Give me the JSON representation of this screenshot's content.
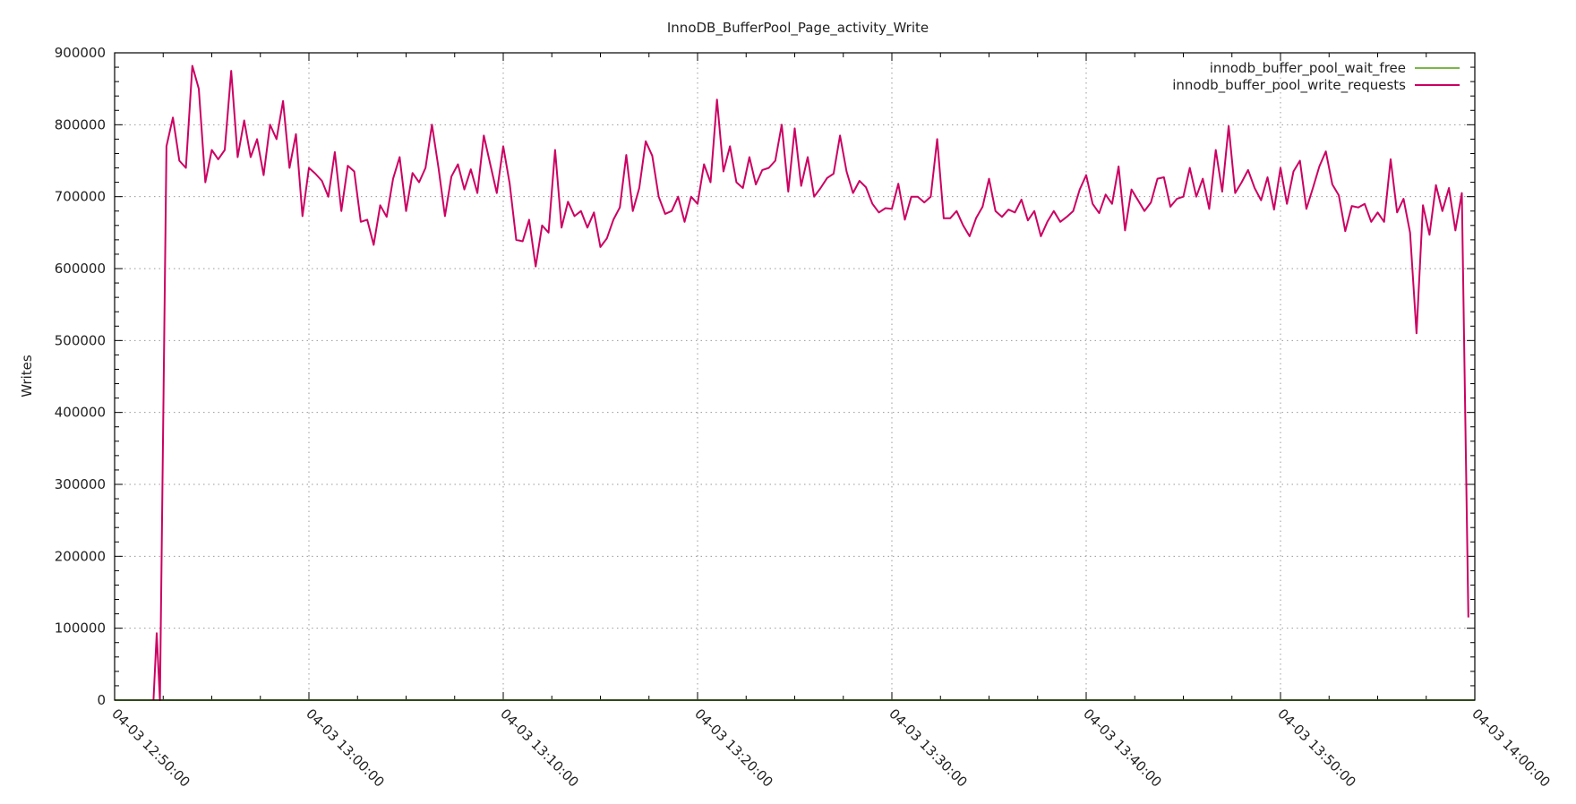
{
  "chart_data": {
    "type": "line",
    "title": "InnoDB_BufferPool_Page_activity_Write",
    "xlabel": "",
    "ylabel": "Writes",
    "xlim": [
      "04-03 12:50:00",
      "04-03 14:00:00"
    ],
    "ylim": [
      0,
      900000
    ],
    "x_ticks": [
      "04-03 12:50:00",
      "04-03 13:00:00",
      "04-03 13:10:00",
      "04-03 13:20:00",
      "04-03 13:30:00",
      "04-03 13:40:00",
      "04-03 13:50:00",
      "04-03 14:00:00"
    ],
    "y_ticks": [
      "0",
      "100000",
      "200000",
      "300000",
      "400000",
      "500000",
      "600000",
      "700000",
      "800000",
      "900000"
    ],
    "grid": true,
    "legend_position": "top-right",
    "series": [
      {
        "name": "innodb_buffer_pool_wait_free",
        "color": "#7ab648",
        "x": [
          "12:50:00",
          "14:00:00"
        ],
        "y": [
          0,
          0
        ]
      },
      {
        "name": "innodb_buffer_pool_write_requests",
        "color": "#cc0062",
        "x": [
          "12:52:00",
          "12:52:10",
          "12:52:20",
          "12:52:40",
          "12:53:00",
          "12:53:20",
          "12:53:40",
          "12:54:00",
          "12:54:20",
          "12:54:40",
          "12:55:00",
          "12:55:20",
          "12:55:40",
          "12:56:00",
          "12:56:20",
          "12:56:40",
          "12:57:00",
          "12:57:20",
          "12:57:40",
          "12:58:00",
          "12:58:20",
          "12:58:40",
          "12:59:00",
          "12:59:20",
          "12:59:40",
          "13:00:00",
          "13:00:20",
          "13:00:40",
          "13:01:00",
          "13:01:20",
          "13:01:40",
          "13:02:00",
          "13:02:20",
          "13:02:40",
          "13:03:00",
          "13:03:20",
          "13:03:40",
          "13:04:00",
          "13:04:20",
          "13:04:40",
          "13:05:00",
          "13:05:20",
          "13:05:40",
          "13:06:00",
          "13:06:20",
          "13:06:40",
          "13:07:00",
          "13:07:20",
          "13:07:40",
          "13:08:00",
          "13:08:20",
          "13:08:40",
          "13:09:00",
          "13:09:20",
          "13:09:40",
          "13:10:00",
          "13:10:20",
          "13:10:40",
          "13:11:00",
          "13:11:20",
          "13:11:40",
          "13:12:00",
          "13:12:20",
          "13:12:40",
          "13:13:00",
          "13:13:20",
          "13:13:40",
          "13:14:00",
          "13:14:20",
          "13:14:40",
          "13:15:00",
          "13:15:20",
          "13:15:40",
          "13:16:00",
          "13:16:20",
          "13:16:40",
          "13:17:00",
          "13:17:20",
          "13:17:40",
          "13:18:00",
          "13:18:20",
          "13:18:40",
          "13:19:00",
          "13:19:20",
          "13:19:40",
          "13:20:00",
          "13:20:20",
          "13:20:40",
          "13:21:00",
          "13:21:20",
          "13:21:40",
          "13:22:00",
          "13:22:20",
          "13:22:40",
          "13:23:00",
          "13:23:20",
          "13:23:40",
          "13:24:00",
          "13:24:20",
          "13:24:40",
          "13:25:00",
          "13:25:20",
          "13:25:40",
          "13:26:00",
          "13:26:20",
          "13:26:40",
          "13:27:00",
          "13:27:20",
          "13:27:40",
          "13:28:00",
          "13:28:20",
          "13:28:40",
          "13:29:00",
          "13:29:20",
          "13:29:40",
          "13:30:00",
          "13:30:20",
          "13:30:40",
          "13:31:00",
          "13:31:20",
          "13:31:40",
          "13:32:00",
          "13:32:20",
          "13:32:40",
          "13:33:00",
          "13:33:20",
          "13:33:40",
          "13:34:00",
          "13:34:20",
          "13:34:40",
          "13:35:00",
          "13:35:20",
          "13:35:40",
          "13:36:00",
          "13:36:20",
          "13:36:40",
          "13:37:00",
          "13:37:20",
          "13:37:40",
          "13:38:00",
          "13:38:20",
          "13:38:40",
          "13:39:00",
          "13:39:20",
          "13:39:40",
          "13:40:00",
          "13:40:20",
          "13:40:40",
          "13:41:00",
          "13:41:20",
          "13:41:40",
          "13:42:00",
          "13:42:20",
          "13:42:40",
          "13:43:00",
          "13:43:20",
          "13:43:40",
          "13:44:00",
          "13:44:20",
          "13:44:40",
          "13:45:00",
          "13:45:20",
          "13:45:40",
          "13:46:00",
          "13:46:20",
          "13:46:40",
          "13:47:00",
          "13:47:20",
          "13:47:40",
          "13:48:00",
          "13:48:20",
          "13:48:40",
          "13:49:00",
          "13:49:20",
          "13:49:40",
          "13:50:00",
          "13:50:20",
          "13:50:40",
          "13:51:00",
          "13:51:20",
          "13:51:40",
          "13:52:00",
          "13:52:20",
          "13:52:40",
          "13:53:00",
          "13:53:20",
          "13:53:40",
          "13:54:00",
          "13:54:20",
          "13:54:40",
          "13:55:00",
          "13:55:20",
          "13:55:40",
          "13:56:00",
          "13:56:20",
          "13:56:40",
          "13:57:00",
          "13:57:20",
          "13:57:40",
          "13:58:00",
          "13:58:20",
          "13:58:40",
          "13:59:00",
          "13:59:20",
          "13:59:40"
        ],
        "y": [
          0,
          93000,
          0,
          770000,
          810000,
          750000,
          740000,
          882000,
          850000,
          720000,
          765000,
          752000,
          765000,
          875000,
          755000,
          806000,
          755000,
          780000,
          730000,
          800000,
          780000,
          833000,
          740000,
          787000,
          673000,
          740000,
          732000,
          722000,
          700000,
          762000,
          680000,
          743000,
          735000,
          665000,
          668000,
          633000,
          688000,
          672000,
          725000,
          755000,
          680000,
          733000,
          720000,
          740000,
          800000,
          740000,
          673000,
          728000,
          745000,
          710000,
          738000,
          705000,
          785000,
          745000,
          705000,
          770000,
          718000,
          640000,
          638000,
          668000,
          603000,
          660000,
          650000,
          765000,
          657000,
          693000,
          673000,
          680000,
          657000,
          678000,
          630000,
          642000,
          668000,
          685000,
          758000,
          680000,
          712000,
          777000,
          757000,
          700000,
          676000,
          680000,
          700000,
          665000,
          700000,
          690000,
          745000,
          720000,
          835000,
          735000,
          770000,
          720000,
          712000,
          755000,
          717000,
          737000,
          740000,
          750000,
          800000,
          707000,
          795000,
          715000,
          755000,
          700000,
          712000,
          726000,
          732000,
          785000,
          735000,
          705000,
          722000,
          713000,
          690000,
          678000,
          684000,
          683000,
          718000,
          668000,
          700000,
          700000,
          692000,
          700000,
          780000,
          670000,
          670000,
          680000,
          660000,
          645000,
          670000,
          686000,
          725000,
          680000,
          672000,
          682000,
          678000,
          696000,
          667000,
          680000,
          645000,
          665000,
          680000,
          665000,
          672000,
          680000,
          710000,
          730000,
          690000,
          677000,
          703000,
          690000,
          742000,
          653000,
          710000,
          695000,
          680000,
          692000,
          725000,
          727000,
          686000,
          697000,
          700000,
          740000,
          700000,
          725000,
          683000,
          765000,
          707000,
          798000,
          705000,
          720000,
          737000,
          712000,
          695000,
          727000,
          682000,
          740000,
          690000,
          735000,
          750000,
          683000,
          712000,
          742000,
          763000,
          717000,
          702000,
          652000,
          687000,
          685000,
          690000,
          665000,
          678000,
          665000,
          752000,
          678000,
          697000,
          650000,
          510000,
          688000,
          647000,
          716000,
          680000,
          712000,
          653000,
          705000,
          115000
        ]
      }
    ]
  }
}
